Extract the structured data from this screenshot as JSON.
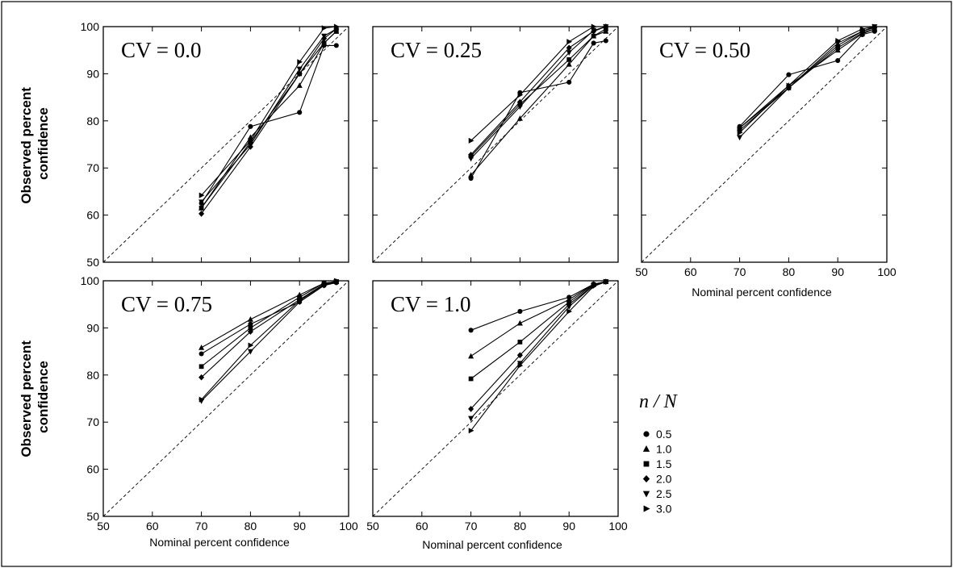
{
  "ylabel_lines": [
    "Observed percent",
    "confidence"
  ],
  "xlabel": "Nominal percent confidence",
  "legend": {
    "title": "n / N",
    "items": [
      {
        "label": "0.5",
        "marker": "circle"
      },
      {
        "label": "1.0",
        "marker": "triangle-up"
      },
      {
        "label": "1.5",
        "marker": "square"
      },
      {
        "label": "2.0",
        "marker": "diamond"
      },
      {
        "label": "2.5",
        "marker": "triangle-down"
      },
      {
        "label": "3.0",
        "marker": "triangle-right"
      }
    ]
  },
  "chart_data": [
    {
      "type": "line",
      "title": "CV = 0.0",
      "xlim": [
        50,
        100
      ],
      "ylim": [
        50,
        100
      ],
      "xticks": [
        "50",
        "60",
        "70",
        "80",
        "90",
        "100"
      ],
      "yticks": [
        "50",
        "60",
        "70",
        "80",
        "90",
        "100"
      ],
      "x": [
        70,
        80,
        90,
        95,
        97.5
      ],
      "reference": "y = x (dashed)",
      "series": [
        {
          "name": "0.5",
          "values": [
            62.5,
            78.8,
            81.8,
            96,
            96
          ]
        },
        {
          "name": "1.0",
          "values": [
            61.5,
            76.5,
            87.5,
            96.5,
            99
          ]
        },
        {
          "name": "1.5",
          "values": [
            61.5,
            75.5,
            90,
            96.5,
            99
          ]
        },
        {
          "name": "2.0",
          "values": [
            60.3,
            74.5,
            90,
            97.5,
            99.5
          ]
        },
        {
          "name": "2.5",
          "values": [
            62.8,
            75,
            91,
            98,
            99.5
          ]
        },
        {
          "name": "3.0",
          "values": [
            64.2,
            75.8,
            92.5,
            99.7,
            100
          ]
        }
      ]
    },
    {
      "type": "line",
      "title": "CV = 0.25",
      "xlim": [
        50,
        100
      ],
      "ylim": [
        50,
        100
      ],
      "xticks": [
        "50",
        "60",
        "70",
        "80",
        "90",
        "100"
      ],
      "yticks": [
        "50",
        "60",
        "70",
        "80",
        "90",
        "100"
      ],
      "x": [
        70,
        80,
        90,
        95,
        97.5
      ],
      "reference": "y = x (dashed)",
      "series": [
        {
          "name": "0.5",
          "values": [
            67.8,
            86,
            88.2,
            96.5,
            97
          ]
        },
        {
          "name": "1.0",
          "values": [
            68.5,
            80.5,
            92,
            98,
            99
          ]
        },
        {
          "name": "1.5",
          "values": [
            72.5,
            83.5,
            93,
            98,
            99.5
          ]
        },
        {
          "name": "2.0",
          "values": [
            72.8,
            84,
            95.5,
            99,
            100
          ]
        },
        {
          "name": "2.5",
          "values": [
            72,
            83,
            94.5,
            99.2,
            100
          ]
        },
        {
          "name": "3.0",
          "values": [
            75.8,
            85.5,
            96.8,
            100,
            100
          ]
        }
      ]
    },
    {
      "type": "line",
      "title": "CV = 0.50",
      "xlim": [
        50,
        100
      ],
      "ylim": [
        50,
        100
      ],
      "xticks": [
        "50",
        "60",
        "70",
        "80",
        "90",
        "100"
      ],
      "yticks": [
        "50",
        "60",
        "70",
        "80",
        "90",
        "100"
      ],
      "x": [
        70,
        80,
        90,
        95,
        97.5
      ],
      "reference": "y = x (dashed)",
      "series": [
        {
          "name": "0.5",
          "values": [
            78.8,
            89.8,
            92.8,
            98.3,
            99
          ]
        },
        {
          "name": "1.0",
          "values": [
            78.5,
            87.5,
            95,
            98.5,
            99.5
          ]
        },
        {
          "name": "1.5",
          "values": [
            78,
            87,
            95.5,
            98.7,
            99.5
          ]
        },
        {
          "name": "2.0",
          "values": [
            78.5,
            87,
            96,
            99,
            99.8
          ]
        },
        {
          "name": "2.5",
          "values": [
            76.5,
            87,
            96.5,
            99,
            100
          ]
        },
        {
          "name": "3.0",
          "values": [
            77.5,
            87.5,
            97,
            99.5,
            100
          ]
        }
      ]
    },
    {
      "type": "line",
      "title": "CV = 0.75",
      "xlim": [
        50,
        100
      ],
      "ylim": [
        50,
        100
      ],
      "xticks": [
        "50",
        "60",
        "70",
        "80",
        "90",
        "100"
      ],
      "yticks": [
        "50",
        "60",
        "70",
        "80",
        "90",
        "100"
      ],
      "x": [
        70,
        80,
        90,
        95,
        97.5
      ],
      "reference": "y = x (dashed)",
      "series": [
        {
          "name": "0.5",
          "values": [
            84.5,
            90.8,
            95.5,
            99,
            99.6
          ]
        },
        {
          "name": "1.0",
          "values": [
            85.8,
            91.8,
            97,
            99.5,
            99.8
          ]
        },
        {
          "name": "1.5",
          "values": [
            81.8,
            90,
            96.5,
            99.5,
            99.8
          ]
        },
        {
          "name": "2.0",
          "values": [
            79.5,
            89.2,
            96,
            99.3,
            99.8
          ]
        },
        {
          "name": "2.5",
          "values": [
            74.5,
            85,
            95.5,
            99,
            99.8
          ]
        },
        {
          "name": "3.0",
          "values": [
            74.8,
            86.3,
            95.8,
            99.2,
            100
          ]
        }
      ]
    },
    {
      "type": "line",
      "title": "CV = 1.0",
      "xlim": [
        50,
        100
      ],
      "ylim": [
        50,
        100
      ],
      "xticks": [
        "50",
        "60",
        "70",
        "80",
        "90",
        "100"
      ],
      "yticks": [
        "50",
        "60",
        "70",
        "80",
        "90",
        "100"
      ],
      "x": [
        70,
        80,
        90,
        95,
        97.5
      ],
      "reference": "y = x (dashed)",
      "series": [
        {
          "name": "0.5",
          "values": [
            89.5,
            93.5,
            96.5,
            99.3,
            99.8
          ]
        },
        {
          "name": "1.0",
          "values": [
            84,
            91,
            96,
            99.3,
            99.8
          ]
        },
        {
          "name": "1.5",
          "values": [
            79.2,
            87,
            95.5,
            99.2,
            99.8
          ]
        },
        {
          "name": "2.0",
          "values": [
            72.8,
            84.2,
            95,
            99,
            99.8
          ]
        },
        {
          "name": "2.5",
          "values": [
            70.8,
            82.5,
            94.5,
            99,
            99.8
          ]
        },
        {
          "name": "3.0",
          "values": [
            68.2,
            82,
            93.5,
            98.8,
            99.8
          ]
        }
      ]
    }
  ]
}
